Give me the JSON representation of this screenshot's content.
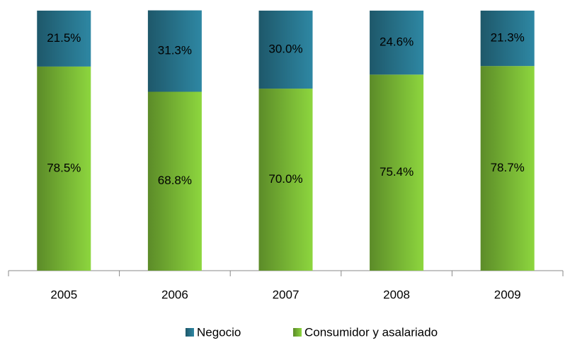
{
  "chart_data": {
    "type": "stacked_bar",
    "categories": [
      "2005",
      "2006",
      "2007",
      "2008",
      "2009"
    ],
    "series": [
      {
        "name": "Negocio",
        "color": "#2e87a3",
        "values": [
          21.5,
          31.3,
          30.0,
          24.6,
          21.3
        ],
        "value_labels": [
          "21.5%",
          "31.3%",
          "30.0%",
          "24.6%",
          "21.3%"
        ]
      },
      {
        "name": "Consumidor y asalariado",
        "color": "#8dd63e",
        "values": [
          78.5,
          68.8,
          70.0,
          75.4,
          78.7
        ],
        "value_labels": [
          "78.5%",
          "68.8%",
          "70.0%",
          "75.4%",
          "78.7%"
        ]
      }
    ],
    "ylim": [
      0,
      100
    ]
  }
}
